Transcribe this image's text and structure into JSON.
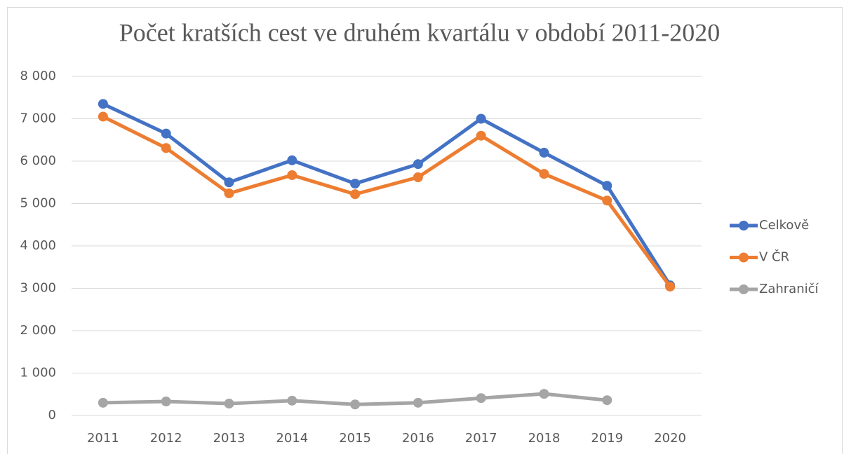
{
  "chart_data": {
    "type": "line",
    "title": "Počet kratších cest ve druhém kvartálu v období 2011-2020",
    "categories": [
      "2011",
      "2012",
      "2013",
      "2014",
      "2015",
      "2016",
      "2017",
      "2018",
      "2019",
      "2020"
    ],
    "series": [
      {
        "name": "Celkově",
        "color": "#4472c4",
        "values": [
          7350,
          6650,
          5500,
          6020,
          5470,
          5930,
          7000,
          6200,
          5420,
          3070
        ]
      },
      {
        "name": "V ČR",
        "color": "#ed7d31",
        "values": [
          7050,
          6310,
          5240,
          5670,
          5220,
          5620,
          6600,
          5700,
          5070,
          3040
        ]
      },
      {
        "name": "Zahraničí",
        "color": "#a5a5a5",
        "values": [
          300,
          330,
          280,
          350,
          260,
          300,
          410,
          510,
          360,
          null
        ]
      }
    ],
    "ylim": [
      0,
      8000
    ],
    "yticks": [
      0,
      {
        "value": 1000,
        "label": "1 000"
      },
      {
        "value": 2000,
        "label": "2 000"
      },
      {
        "value": 3000,
        "label": "3 000"
      },
      {
        "value": 4000,
        "label": "4 000"
      },
      {
        "value": 5000,
        "label": "5 000"
      },
      {
        "value": 6000,
        "label": "6 000"
      },
      {
        "value": 7000,
        "label": "7 000"
      },
      {
        "value": 8000,
        "label": "8 000"
      }
    ],
    "grid": true,
    "legend": "right"
  }
}
